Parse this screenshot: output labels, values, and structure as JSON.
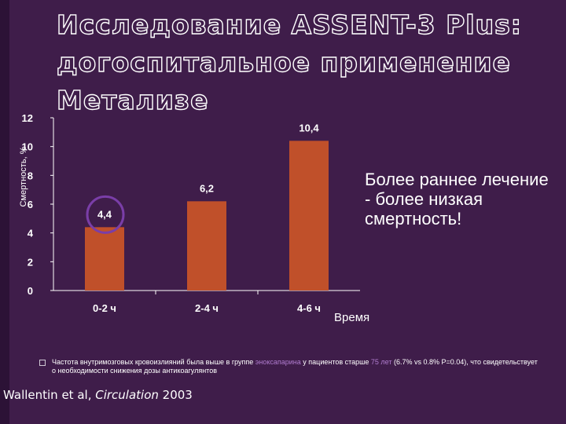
{
  "title": "Исследование ASSENT-3 Plus: догоспитальное применение Метализе",
  "side_note": "Более раннее лечение - более низкая смертность!",
  "footnote": {
    "part1": "Частота внутримозговых кровоизлияний была выше в группе ",
    "highlight1": "эноксапарина",
    "part2": " у пациентов старше ",
    "highlight2": "75 лет",
    "part3": " (6.7% vs 0.8% P=0.04), что свидетельствует о необходимости снижения дозы антикоагулянтов"
  },
  "citation": {
    "authors": "Wallentin et al, ",
    "journal": "Circulation",
    "year": " 2003"
  },
  "colors": {
    "background": "#3f1d4a",
    "bar": "#c0502a",
    "highlight": "#b07ccf",
    "circle": "#7a3ea8"
  },
  "chart_data": {
    "type": "bar",
    "categories": [
      "0-2 ч",
      "2-4 ч",
      "4-6 ч"
    ],
    "values": [
      4.4,
      6.2,
      10.4
    ],
    "data_labels": [
      "4,4",
      "6,2",
      "10,4"
    ],
    "ylabel": "Смертность, %",
    "xlabel": "Время",
    "ylim": [
      0,
      12
    ],
    "yticks": [
      "0",
      "2",
      "4",
      "6",
      "8",
      "10",
      "12"
    ],
    "highlighted_category": "0-2 ч"
  }
}
